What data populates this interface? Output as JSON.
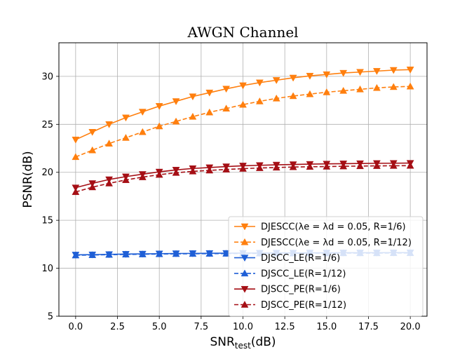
{
  "chart_data": {
    "type": "line",
    "title": "AWGN Channel",
    "xlabel": "SNR",
    "xlabel_sub": "test",
    "xlabel_unit": "(dB)",
    "ylabel": "PSNR(dB)",
    "xlim": [
      -1,
      21
    ],
    "ylim": [
      5,
      33.5
    ],
    "xticks": [
      0,
      2.5,
      5,
      7.5,
      10,
      12.5,
      15,
      17.5,
      20
    ],
    "xtick_labels": [
      "0.0",
      "2.5",
      "5.0",
      "7.5",
      "10.0",
      "12.5",
      "15.0",
      "17.5",
      "20.0"
    ],
    "yticks": [
      5,
      10,
      15,
      20,
      25,
      30
    ],
    "ytick_labels": [
      "5",
      "10",
      "15",
      "20",
      "25",
      "30"
    ],
    "grid": true,
    "legend_position": "lower-right",
    "x": [
      0,
      1,
      2,
      3,
      4,
      5,
      6,
      7,
      8,
      9,
      10,
      11,
      12,
      13,
      14,
      15,
      16,
      17,
      18,
      19,
      20
    ],
    "series": [
      {
        "name": "DJESCC(λe = λd = 0.05, R=1/6)",
        "color": "#ff7f0e",
        "line_style": "solid",
        "marker": "triangle-down",
        "values": [
          23.4,
          24.2,
          25.0,
          25.7,
          26.3,
          26.9,
          27.4,
          27.9,
          28.3,
          28.7,
          29.05,
          29.35,
          29.6,
          29.85,
          30.05,
          30.2,
          30.35,
          30.45,
          30.55,
          30.65,
          30.7
        ]
      },
      {
        "name": "DJESCC(λe = λd = 0.05, R=1/12)",
        "color": "#ff7f0e",
        "line_style": "dashed",
        "marker": "triangle-up",
        "values": [
          21.6,
          22.3,
          23.0,
          23.6,
          24.2,
          24.8,
          25.3,
          25.8,
          26.25,
          26.65,
          27.05,
          27.4,
          27.7,
          27.95,
          28.15,
          28.35,
          28.5,
          28.65,
          28.8,
          28.9,
          28.95
        ]
      },
      {
        "name": "DJSCC_LE(R=1/6)",
        "color": "#1f5fd6",
        "line_style": "solid",
        "marker": "triangle-down",
        "values": [
          11.4,
          11.42,
          11.45,
          11.48,
          11.5,
          11.52,
          11.54,
          11.55,
          11.56,
          11.57,
          11.58,
          11.59,
          11.6,
          11.6,
          11.61,
          11.61,
          11.62,
          11.62,
          11.62,
          11.63,
          11.63
        ]
      },
      {
        "name": "DJSCC_LE(R=1/12)",
        "color": "#1f5fd6",
        "line_style": "dashed",
        "marker": "triangle-up",
        "values": [
          11.35,
          11.38,
          11.41,
          11.44,
          11.46,
          11.48,
          11.5,
          11.51,
          11.52,
          11.53,
          11.54,
          11.55,
          11.56,
          11.56,
          11.57,
          11.57,
          11.58,
          11.58,
          11.58,
          11.59,
          11.59
        ]
      },
      {
        "name": "DJSCC_PE(R=1/6)",
        "color": "#a50f15",
        "line_style": "solid",
        "marker": "triangle-down",
        "values": [
          18.4,
          18.85,
          19.25,
          19.55,
          19.8,
          20.05,
          20.25,
          20.4,
          20.5,
          20.6,
          20.68,
          20.73,
          20.78,
          20.82,
          20.85,
          20.88,
          20.9,
          20.92,
          20.94,
          20.95,
          20.96
        ]
      },
      {
        "name": "DJSCC_PE(R=1/12)",
        "color": "#a50f15",
        "line_style": "dashed",
        "marker": "triangle-up",
        "values": [
          17.95,
          18.45,
          18.85,
          19.2,
          19.5,
          19.75,
          19.95,
          20.1,
          20.2,
          20.3,
          20.38,
          20.45,
          20.5,
          20.55,
          20.58,
          20.6,
          20.63,
          20.65,
          20.67,
          20.68,
          20.69
        ]
      }
    ]
  }
}
